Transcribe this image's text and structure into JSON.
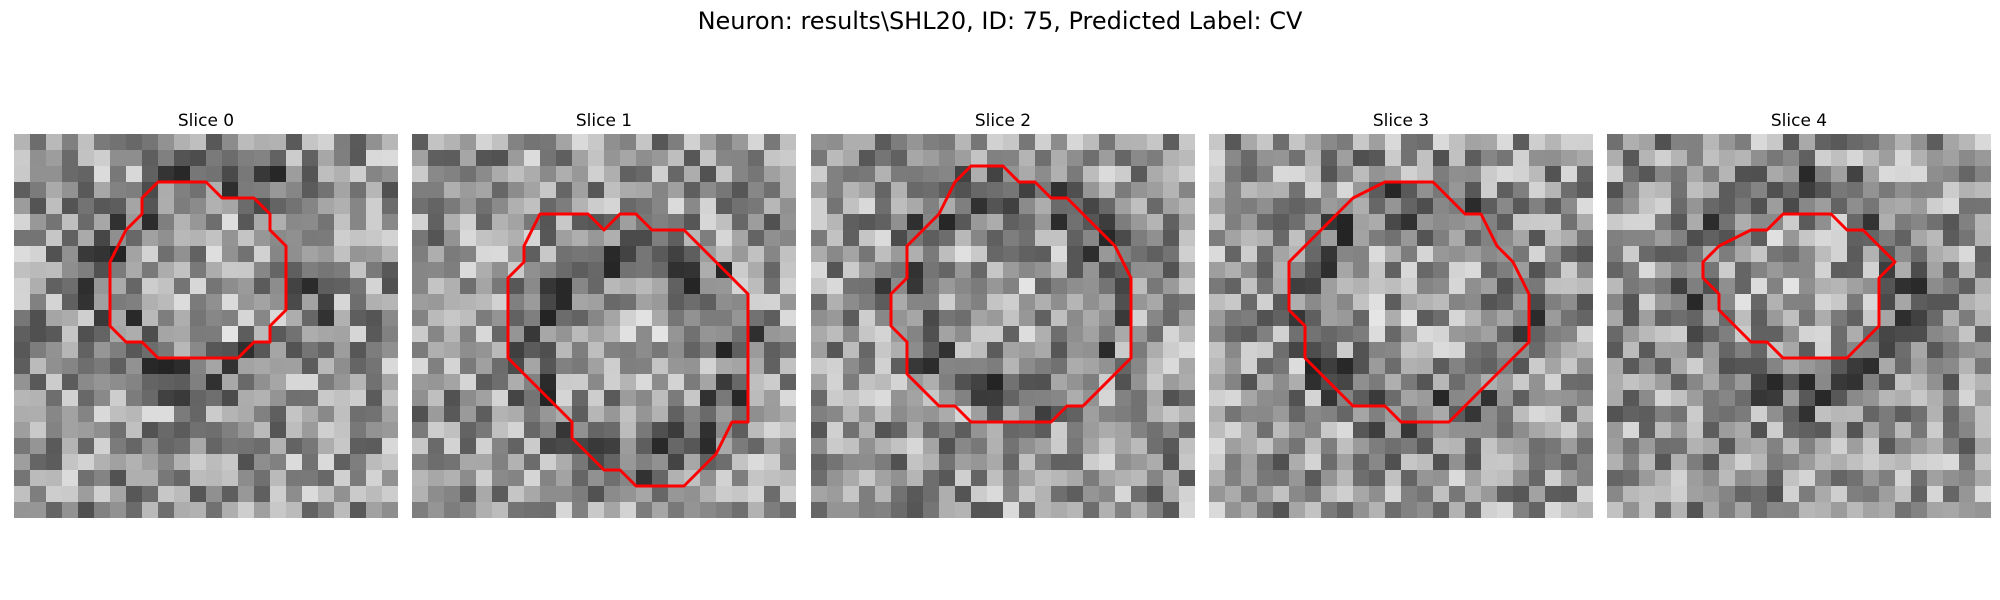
{
  "figure": {
    "title": "Neuron: results\\SHL20, ID: 75, Predicted Label: CV",
    "contour_color": "#ff0000",
    "image_colormap": "gray"
  },
  "slices": [
    {
      "title": "Slice 0",
      "contour": [
        [
          9,
          3
        ],
        [
          12,
          3
        ],
        [
          13,
          4
        ],
        [
          15,
          4
        ],
        [
          16,
          5
        ],
        [
          16,
          6
        ],
        [
          17,
          7
        ],
        [
          17,
          11
        ],
        [
          16,
          12
        ],
        [
          16,
          13
        ],
        [
          15,
          13
        ],
        [
          14,
          14
        ],
        [
          9,
          14
        ],
        [
          8,
          13
        ],
        [
          7,
          13
        ],
        [
          6,
          12
        ],
        [
          6,
          8
        ],
        [
          7,
          6
        ],
        [
          8,
          5
        ],
        [
          8,
          4
        ]
      ]
    },
    {
      "title": "Slice 1",
      "contour": [
        [
          8,
          5
        ],
        [
          11,
          5
        ],
        [
          12,
          6
        ],
        [
          13,
          5
        ],
        [
          14,
          5
        ],
        [
          15,
          6
        ],
        [
          17,
          6
        ],
        [
          21,
          10
        ],
        [
          21,
          18
        ],
        [
          20,
          18
        ],
        [
          19,
          20
        ],
        [
          18,
          21
        ],
        [
          17,
          22
        ],
        [
          14,
          22
        ],
        [
          13,
          21
        ],
        [
          12,
          21
        ],
        [
          11,
          20
        ],
        [
          10,
          19
        ],
        [
          10,
          18
        ],
        [
          6,
          14
        ],
        [
          6,
          9
        ],
        [
          7,
          8
        ],
        [
          7,
          7
        ]
      ]
    },
    {
      "title": "Slice 2",
      "contour": [
        [
          10,
          2
        ],
        [
          12,
          2
        ],
        [
          13,
          3
        ],
        [
          14,
          3
        ],
        [
          15,
          4
        ],
        [
          16,
          4
        ],
        [
          17,
          5
        ],
        [
          18,
          6
        ],
        [
          19,
          7
        ],
        [
          20,
          9
        ],
        [
          20,
          14
        ],
        [
          17,
          17
        ],
        [
          16,
          17
        ],
        [
          15,
          18
        ],
        [
          10,
          18
        ],
        [
          9,
          17
        ],
        [
          8,
          17
        ],
        [
          6,
          15
        ],
        [
          6,
          13
        ],
        [
          5,
          12
        ],
        [
          5,
          10
        ],
        [
          6,
          9
        ],
        [
          6,
          7
        ],
        [
          7,
          6
        ],
        [
          8,
          5
        ],
        [
          9,
          3
        ]
      ]
    },
    {
      "title": "Slice 3",
      "contour": [
        [
          11,
          3
        ],
        [
          14,
          3
        ],
        [
          16,
          5
        ],
        [
          17,
          5
        ],
        [
          18,
          7
        ],
        [
          19,
          8
        ],
        [
          20,
          10
        ],
        [
          20,
          13
        ],
        [
          19,
          14
        ],
        [
          18,
          15
        ],
        [
          15,
          18
        ],
        [
          12,
          18
        ],
        [
          11,
          17
        ],
        [
          9,
          17
        ],
        [
          7,
          15
        ],
        [
          6,
          14
        ],
        [
          6,
          12
        ],
        [
          5,
          11
        ],
        [
          5,
          8
        ],
        [
          6,
          7
        ],
        [
          7,
          6
        ],
        [
          9,
          4
        ]
      ]
    },
    {
      "title": "Slice 4",
      "contour": [
        [
          12,
          5
        ],
        [
          14,
          5
        ],
        [
          15,
          6
        ],
        [
          16,
          6
        ],
        [
          17,
          7
        ],
        [
          18,
          8
        ],
        [
          17,
          9
        ],
        [
          17,
          12
        ],
        [
          16,
          13
        ],
        [
          15,
          14
        ],
        [
          11,
          14
        ],
        [
          10,
          13
        ],
        [
          9,
          13
        ],
        [
          8,
          12
        ],
        [
          7,
          11
        ],
        [
          7,
          10
        ],
        [
          6,
          9
        ],
        [
          6,
          8
        ],
        [
          7,
          7
        ],
        [
          9,
          6
        ],
        [
          10,
          6
        ],
        [
          11,
          5
        ]
      ]
    }
  ]
}
